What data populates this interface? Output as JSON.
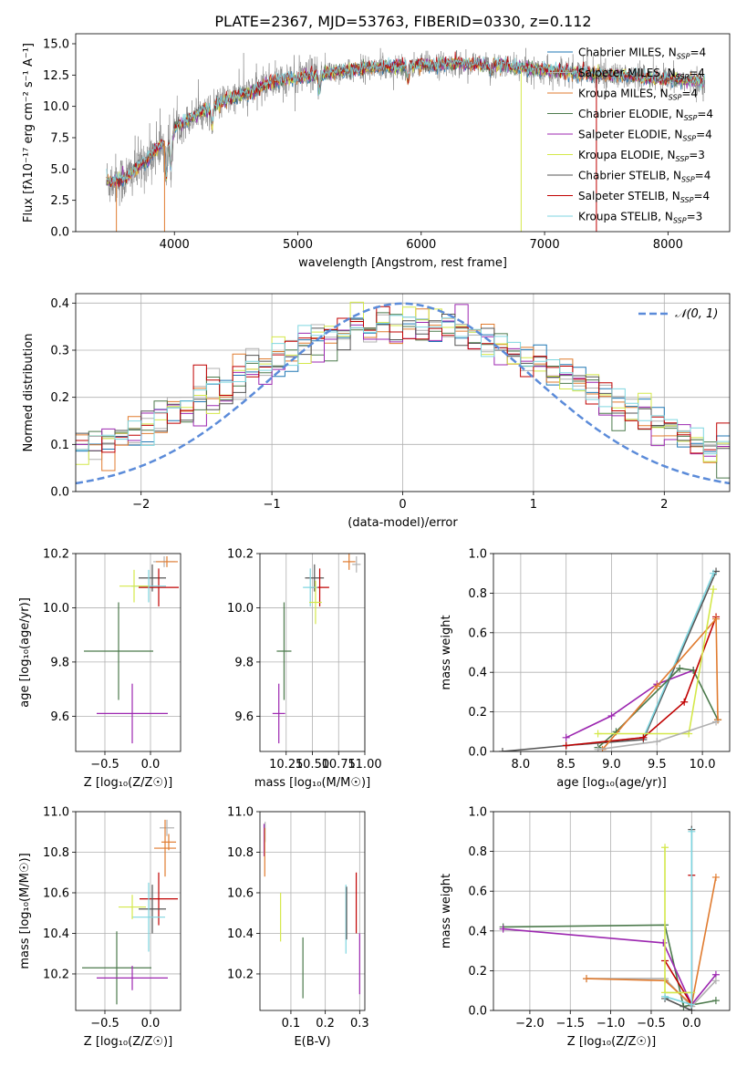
{
  "figure_title": "PLATE=2367, MJD=53763, FIBERID=0330, z=0.112",
  "palette": {
    "chabrier_miles": "#1f77b4",
    "salpeter_miles": "#b0b0b0",
    "kroupa_miles": "#e07b2f",
    "chabrier_elodie": "#4c7a4c",
    "salpeter_elodie": "#9c27b0",
    "kroupa_elodie": "#d4e84a",
    "chabrier_stelib": "#555555",
    "salpeter_stelib": "#c00000",
    "kroupa_stelib": "#7fd6e0",
    "observed": "#808080",
    "gaussian": "#5b8bd9"
  },
  "chart_data": [
    {
      "id": "spectrum",
      "type": "line",
      "title": "PLATE=2367, MJD=53763, FIBERID=0330, z=0.112",
      "xlabel": "wavelength [Angstrom, rest frame]",
      "ylabel": "Flux [fλ10⁻¹⁷ erg cm⁻² s⁻¹ A⁻¹]",
      "xlim": [
        3200,
        8500
      ],
      "ylim": [
        0,
        15.8
      ],
      "xticks": [
        "4000",
        "5000",
        "6000",
        "7000",
        "8000"
      ],
      "yticks": [
        "0.0",
        "2.5",
        "5.0",
        "7.5",
        "10.0",
        "12.5",
        "15.0"
      ],
      "grid": false,
      "legend_position": "right",
      "legend": [
        "Chabrier MILES, N_SSP=4",
        "Salpeter MILES, N_SSP=4",
        "Kroupa MILES, N_SSP=4",
        "Chabrier ELODIE, N_SSP=4",
        "Salpeter ELODIE, N_SSP=4",
        "Kroupa ELODIE, N_SSP=3",
        "Chabrier STELIB, N_SSP=4",
        "Salpeter STELIB, N_SSP=4",
        "Kroupa STELIB, N_SSP=3"
      ],
      "model_continuum_anchors": [
        [
          3450,
          4.0
        ],
        [
          3600,
          4.2
        ],
        [
          3750,
          5.5
        ],
        [
          3900,
          7.0
        ],
        [
          4000,
          8.2
        ],
        [
          4200,
          9.5
        ],
        [
          4400,
          10.4
        ],
        [
          4600,
          11.1
        ],
        [
          4800,
          12.0
        ],
        [
          5000,
          12.3
        ],
        [
          5200,
          12.6
        ],
        [
          5500,
          13.0
        ],
        [
          5800,
          13.2
        ],
        [
          6000,
          13.3
        ],
        [
          6300,
          13.4
        ],
        [
          6600,
          13.3
        ],
        [
          7000,
          12.9
        ],
        [
          7400,
          12.6
        ],
        [
          7800,
          12.3
        ],
        [
          8200,
          12.0
        ],
        [
          8300,
          11.9
        ]
      ],
      "features": [
        {
          "label": "dip",
          "x": 3935,
          "depth": 3.0
        },
        {
          "label": "dip",
          "x": 3970,
          "depth": 2.8
        },
        {
          "label": "dip",
          "x": 4305,
          "depth": 1.6
        },
        {
          "label": "dip",
          "x": 5175,
          "depth": 1.3
        },
        {
          "label": "dip",
          "x": 5892,
          "depth": 1.2
        },
        {
          "label": "dip",
          "x": 6563,
          "depth": 0.7
        }
      ],
      "outliers": [
        {
          "x": 3530,
          "y": 0.0
        },
        {
          "x": 3920,
          "y": 0.0
        },
        {
          "x": 6810,
          "y": 0.0
        },
        {
          "x": 7420,
          "y": 0.0
        }
      ]
    },
    {
      "id": "residuals",
      "type": "line",
      "xlabel": "(data-model)/error",
      "ylabel": "Normed distribution",
      "xlim": [
        -2.5,
        2.5
      ],
      "ylim": [
        0,
        0.42
      ],
      "xticks": [
        "−2",
        "−1",
        "0",
        "1",
        "2"
      ],
      "yticks": [
        "0.0",
        "0.1",
        "0.2",
        "0.3",
        "0.4"
      ],
      "grid": true,
      "legend_position": "upper-right",
      "legend_label": "𝒩(0, 1)",
      "bin_width": 0.1,
      "hist_start": -2.5,
      "n_histograms": 9
    },
    {
      "id": "age_vs_Z",
      "type": "scatter",
      "xlabel": "Z [log₁₀(Z/Z☉)]",
      "ylabel": "age  [log₁₀(age/yr)]",
      "xlim": [
        -0.82,
        0.33
      ],
      "ylim": [
        9.47,
        10.2
      ],
      "xticks": [
        "−0.5",
        "0.0"
      ],
      "yticks": [
        "9.6",
        "9.8",
        "10.0",
        "10.2"
      ],
      "grid": true,
      "points": [
        {
          "x": 0.15,
          "y": 10.17,
          "xerr": 0.12,
          "yerr": 0.02,
          "c": "salpeter_miles"
        },
        {
          "x": 0.18,
          "y": 10.17,
          "xerr": 0.12,
          "yerr": 0.02,
          "c": "kroupa_miles"
        },
        {
          "x": 0.02,
          "y": 10.11,
          "xerr": 0.15,
          "yerr": 0.05,
          "c": "chabrier_stelib"
        },
        {
          "x": 0.09,
          "y": 10.075,
          "xerr": 0.22,
          "yerr": 0.07,
          "c": "salpeter_stelib"
        },
        {
          "x": -0.02,
          "y": 10.08,
          "xerr": 0.19,
          "yerr": 0.06,
          "c": "kroupa_stelib"
        },
        {
          "x": -0.18,
          "y": 10.08,
          "xerr": 0.16,
          "yerr": 0.06,
          "c": "kroupa_elodie"
        },
        {
          "x": -0.35,
          "y": 9.84,
          "xerr": 0.38,
          "yerr": 0.18,
          "c": "chabrier_elodie"
        },
        {
          "x": -0.2,
          "y": 9.61,
          "xerr": 0.39,
          "yerr": 0.11,
          "c": "salpeter_elodie"
        }
      ]
    },
    {
      "id": "age_vs_mass",
      "type": "scatter",
      "xlabel": "mass [log₁₀(M/M☉)]",
      "ylabel": "",
      "xlim": [
        10.0,
        11.0
      ],
      "ylim": [
        9.47,
        10.2
      ],
      "xticks": [
        "10.25",
        "10.50",
        "10.75",
        "11.00"
      ],
      "yticks": [
        "9.6",
        "9.8",
        "10.0",
        "10.2"
      ],
      "grid": true,
      "points": [
        {
          "x": 10.92,
          "y": 10.16,
          "xerr": 0.04,
          "yerr": 0.03,
          "c": "salpeter_miles"
        },
        {
          "x": 10.85,
          "y": 10.17,
          "xerr": 0.06,
          "yerr": 0.03,
          "c": "kroupa_miles"
        },
        {
          "x": 10.52,
          "y": 10.11,
          "xerr": 0.09,
          "yerr": 0.05,
          "c": "chabrier_stelib"
        },
        {
          "x": 10.57,
          "y": 10.075,
          "xerr": 0.09,
          "yerr": 0.07,
          "c": "salpeter_stelib"
        },
        {
          "x": 10.48,
          "y": 10.075,
          "xerr": 0.07,
          "yerr": 0.07,
          "c": "kroupa_stelib"
        },
        {
          "x": 10.53,
          "y": 10.02,
          "xerr": 0.06,
          "yerr": 0.08,
          "c": "kroupa_elodie"
        },
        {
          "x": 10.23,
          "y": 9.84,
          "xerr": 0.07,
          "yerr": 0.18,
          "c": "chabrier_elodie"
        },
        {
          "x": 10.18,
          "y": 9.61,
          "xerr": 0.06,
          "yerr": 0.11,
          "c": "salpeter_elodie"
        }
      ]
    },
    {
      "id": "weight_vs_age",
      "type": "line",
      "xlabel": "age  [log₁₀(age/yr)]",
      "ylabel": "mass weight",
      "xlim": [
        7.7,
        10.3
      ],
      "ylim": [
        0,
        1.0
      ],
      "xticks": [
        "8.0",
        "8.5",
        "9.0",
        "9.5",
        "10.0"
      ],
      "yticks": [
        "0.0",
        "0.2",
        "0.4",
        "0.6",
        "0.8",
        "1.0"
      ],
      "grid": true,
      "series": [
        {
          "c": "chabrier_stelib",
          "points": [
            [
              7.8,
              0.0
            ],
            [
              8.5,
              0.03
            ],
            [
              9.35,
              0.06
            ],
            [
              10.15,
              0.91
            ]
          ]
        },
        {
          "c": "kroupa_stelib",
          "points": [
            [
              8.5,
              0.03
            ],
            [
              9.35,
              0.07
            ],
            [
              10.12,
              0.9
            ]
          ]
        },
        {
          "c": "salpeter_elodie",
          "points": [
            [
              8.5,
              0.07
            ],
            [
              9.0,
              0.18
            ],
            [
              9.5,
              0.34
            ],
            [
              9.9,
              0.41
            ]
          ]
        },
        {
          "c": "chabrier_elodie",
          "points": [
            [
              8.85,
              0.02
            ],
            [
              9.05,
              0.1
            ],
            [
              9.75,
              0.42
            ],
            [
              9.9,
              0.41
            ],
            [
              10.17,
              0.16
            ]
          ]
        },
        {
          "c": "salpeter_stelib",
          "points": [
            [
              8.5,
              0.03
            ],
            [
              9.35,
              0.07
            ],
            [
              9.8,
              0.25
            ],
            [
              10.15,
              0.68
            ]
          ]
        },
        {
          "c": "kroupa_miles",
          "points": [
            [
              8.9,
              0.01
            ],
            [
              9.5,
              0.33
            ],
            [
              10.15,
              0.67
            ],
            [
              10.17,
              0.16
            ]
          ]
        },
        {
          "c": "kroupa_elodie",
          "points": [
            [
              8.85,
              0.09
            ],
            [
              9.85,
              0.09
            ],
            [
              10.12,
              0.82
            ]
          ]
        },
        {
          "c": "salpeter_miles",
          "points": [
            [
              8.85,
              0.01
            ],
            [
              9.5,
              0.05
            ],
            [
              10.15,
              0.15
            ]
          ]
        }
      ]
    },
    {
      "id": "mass_vs_Z",
      "type": "scatter",
      "xlabel": "Z [log₁₀(Z/Z☉)]",
      "ylabel": "mass [log₁₀(M/M☉)]",
      "xlim": [
        -0.82,
        0.33
      ],
      "ylim": [
        10.02,
        11.0
      ],
      "xticks": [
        "−0.5",
        "0.0"
      ],
      "yticks": [
        "10.2",
        "10.4",
        "10.6",
        "10.8",
        "11.0"
      ],
      "grid": true,
      "points": [
        {
          "x": 0.18,
          "y": 10.92,
          "xerr": 0.08,
          "yerr": 0.04,
          "c": "salpeter_miles"
        },
        {
          "x": 0.2,
          "y": 10.85,
          "xerr": 0.08,
          "yerr": 0.04,
          "c": "kroupa_miles"
        },
        {
          "x": 0.16,
          "y": 10.82,
          "xerr": 0.12,
          "yerr": 0.14,
          "c": "kroupa_miles"
        },
        {
          "x": 0.09,
          "y": 10.57,
          "xerr": 0.21,
          "yerr": 0.13,
          "c": "salpeter_stelib"
        },
        {
          "x": 0.02,
          "y": 10.52,
          "xerr": 0.15,
          "yerr": 0.12,
          "c": "chabrier_stelib"
        },
        {
          "x": -0.02,
          "y": 10.48,
          "xerr": 0.18,
          "yerr": 0.17,
          "c": "kroupa_stelib"
        },
        {
          "x": -0.2,
          "y": 10.53,
          "xerr": 0.15,
          "yerr": 0.06,
          "c": "kroupa_elodie"
        },
        {
          "x": -0.37,
          "y": 10.23,
          "xerr": 0.38,
          "yerr": 0.18,
          "c": "chabrier_elodie"
        },
        {
          "x": -0.2,
          "y": 10.18,
          "xerr": 0.39,
          "yerr": 0.06,
          "c": "salpeter_elodie"
        }
      ]
    },
    {
      "id": "mass_vs_ebv",
      "type": "scatter",
      "xlabel": "E(B-V)",
      "ylabel": "",
      "xlim": [
        0.01,
        0.315
      ],
      "ylim": [
        10.02,
        11.0
      ],
      "xticks": [
        "0.1",
        "0.2",
        "0.3"
      ],
      "yticks": [
        "10.2",
        "10.4",
        "10.6",
        "10.8",
        "11.0"
      ],
      "grid": true,
      "points": [
        {
          "x": 0.025,
          "y": 10.9,
          "yerr": 0.05,
          "c": "salpeter_miles"
        },
        {
          "x": 0.022,
          "y": 10.86,
          "yerr": 0.08,
          "c": "salpeter_elodie"
        },
        {
          "x": 0.024,
          "y": 10.8,
          "yerr": 0.12,
          "c": "kroupa_miles"
        },
        {
          "x": 0.07,
          "y": 10.48,
          "yerr": 0.12,
          "c": "kroupa_elodie"
        },
        {
          "x": 0.135,
          "y": 10.23,
          "yerr": 0.15,
          "c": "chabrier_elodie"
        },
        {
          "x": 0.26,
          "y": 10.47,
          "yerr": 0.17,
          "c": "kroupa_stelib"
        },
        {
          "x": 0.262,
          "y": 10.5,
          "yerr": 0.13,
          "c": "chabrier_stelib"
        },
        {
          "x": 0.29,
          "y": 10.55,
          "yerr": 0.15,
          "c": "salpeter_stelib"
        },
        {
          "x": 0.3,
          "y": 10.25,
          "yerr": 0.15,
          "c": "salpeter_elodie"
        }
      ]
    },
    {
      "id": "weight_vs_Z",
      "type": "line",
      "xlabel": "Z [log₁₀(Z/Z☉)]",
      "ylabel": "mass weight",
      "xlim": [
        -2.45,
        0.47
      ],
      "ylim": [
        0,
        1.0
      ],
      "xticks": [
        "−2.0",
        "−1.5",
        "−1.0",
        "−0.5",
        "0.0"
      ],
      "yticks": [
        "0.0",
        "0.2",
        "0.4",
        "0.6",
        "0.8",
        "1.0"
      ],
      "grid": true,
      "series": [
        {
          "c": "chabrier_elodie",
          "points": [
            [
              -2.33,
              0.42
            ],
            [
              -0.33,
              0.43
            ],
            [
              -0.1,
              0.02
            ],
            [
              0.3,
              0.05
            ]
          ]
        },
        {
          "c": "salpeter_elodie",
          "points": [
            [
              -2.33,
              0.41
            ],
            [
              -0.35,
              0.34
            ],
            [
              0.0,
              0.03
            ],
            [
              0.3,
              0.18
            ]
          ]
        },
        {
          "c": "salpeter_miles",
          "points": [
            [
              -1.3,
              0.16
            ],
            [
              -0.33,
              0.16
            ],
            [
              0.0,
              0.02
            ],
            [
              0.3,
              0.15
            ]
          ]
        },
        {
          "c": "kroupa_miles",
          "points": [
            [
              -1.3,
              0.16
            ],
            [
              -0.33,
              0.15
            ],
            [
              0.0,
              0.03
            ],
            [
              0.3,
              0.67
            ]
          ]
        },
        {
          "c": "salpeter_stelib",
          "points": [
            [
              -0.33,
              0.25
            ],
            [
              0.0,
              0.03
            ],
            [
              0.0,
              0.68
            ]
          ]
        },
        {
          "c": "kroupa_elodie",
          "points": [
            [
              -0.33,
              0.82
            ],
            [
              -0.33,
              0.09
            ],
            [
              0.0,
              0.09
            ]
          ]
        },
        {
          "c": "chabrier_stelib",
          "points": [
            [
              -0.33,
              0.06
            ],
            [
              0.0,
              0.0
            ],
            [
              0.0,
              0.91
            ]
          ]
        },
        {
          "c": "kroupa_stelib",
          "points": [
            [
              -0.33,
              0.07
            ],
            [
              0.0,
              0.03
            ],
            [
              0.0,
              0.9
            ]
          ]
        }
      ]
    }
  ]
}
